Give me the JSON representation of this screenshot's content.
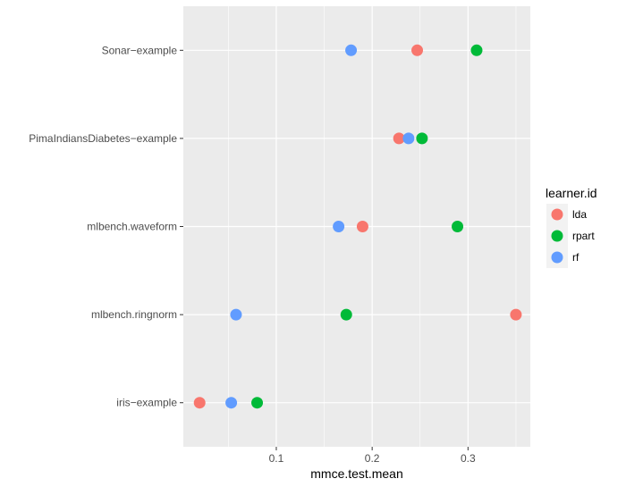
{
  "chart_data": {
    "type": "scatter",
    "title": "",
    "xlabel": "mmce.test.mean",
    "ylabel": "",
    "xlim": [
      0.003,
      0.365
    ],
    "xticks": [
      0.1,
      0.2,
      0.3
    ],
    "xtick_labels": [
      "0.1",
      "0.2",
      "0.3"
    ],
    "categories": [
      "iris-example",
      "mlbench.ringnorm",
      "mlbench.waveform",
      "PimaIndiansDiabetes-example",
      "Sonar-example"
    ],
    "category_labels": [
      "iris−example",
      "mlbench.ringnorm",
      "mlbench.waveform",
      "PimaIndiansDiabetes−example",
      "Sonar−example"
    ],
    "legend": {
      "title": "learner.id",
      "position": "right"
    },
    "series": [
      {
        "name": "lda",
        "color": "#F8766D",
        "values": [
          0.02,
          0.35,
          0.19,
          0.228,
          0.247
        ]
      },
      {
        "name": "rpart",
        "color": "#00BA38",
        "values": [
          0.08,
          0.173,
          0.289,
          0.252,
          0.309
        ]
      },
      {
        "name": "rf",
        "color": "#619CFF",
        "values": [
          0.053,
          0.058,
          0.165,
          0.238,
          0.178
        ]
      }
    ]
  }
}
